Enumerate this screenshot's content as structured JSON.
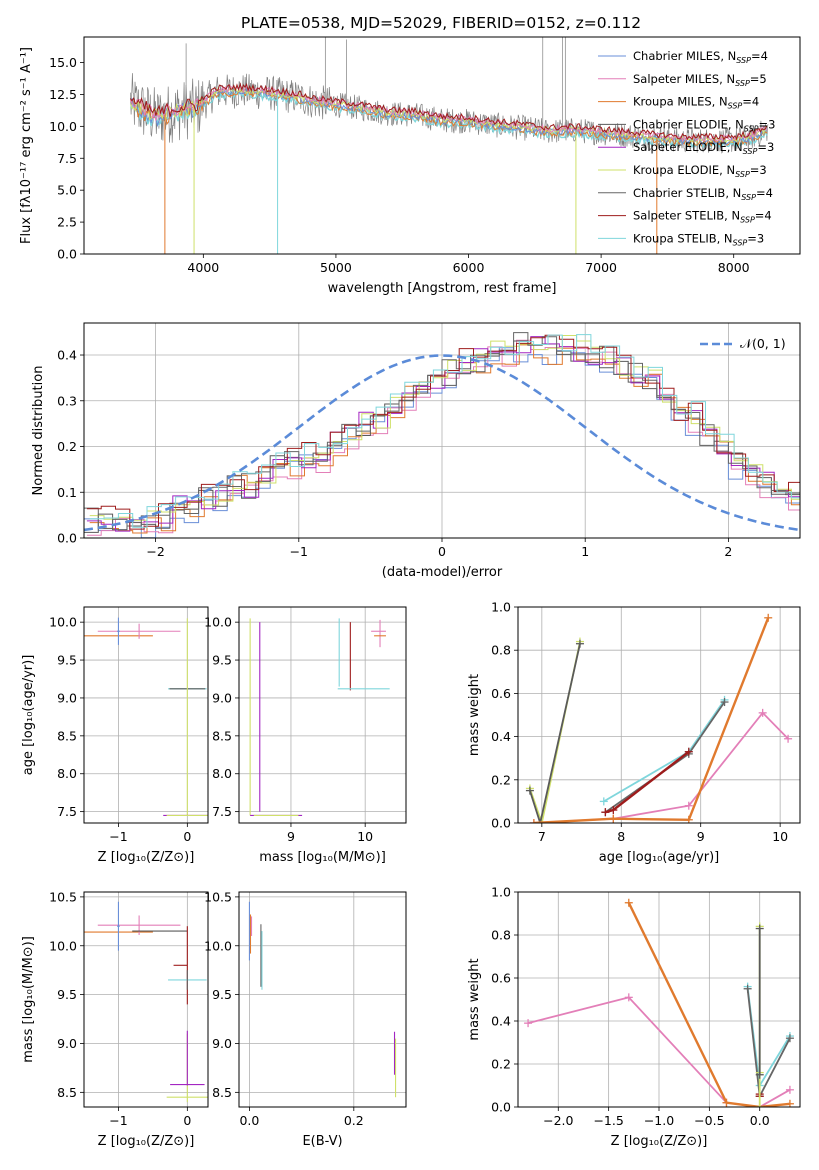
{
  "colors": {
    "chabrier_miles": "#6a8fd8",
    "salpeter_miles": "#e37fb8",
    "kroupa_miles": "#e07a2e",
    "chabrier_elodie": "#5a5a5a",
    "salpeter_elodie": "#a326c2",
    "kroupa_elodie": "#cfe06a",
    "chabrier_stelib": "#666666",
    "salpeter_stelib": "#9e1c1c",
    "kroupa_stelib": "#7fd6dc",
    "normal_curve": "#5b8bd8",
    "grid": "#b0b0b0"
  },
  "chart_data": [
    {
      "id": "spectrum",
      "type": "line",
      "title": "PLATE=0538, MJD=52029, FIBERID=0152, z=0.112",
      "xlabel": "wavelength [Angstrom, rest frame]",
      "ylabel": "Flux [fλ10⁻¹⁷ erg cm⁻² s⁻¹ A⁻¹]",
      "xlim": [
        3100,
        8500
      ],
      "ylim": [
        0,
        17
      ],
      "xticks": [
        4000,
        5000,
        6000,
        7000,
        8000
      ],
      "yticks": [
        0.0,
        2.5,
        5.0,
        7.5,
        10.0,
        12.5,
        15.0
      ],
      "ytick_labels": [
        "0.0",
        "2.5",
        "5.0",
        "7.5",
        "10.0",
        "12.5",
        "15.0"
      ],
      "grid": false,
      "legend_position": "top-right",
      "legend": [
        {
          "label": "Chabrier MILES, N",
          "sub": "SSP",
          "tail": "=4",
          "color_key": "chabrier_miles"
        },
        {
          "label": "Salpeter MILES, N",
          "sub": "SSP",
          "tail": "=5",
          "color_key": "salpeter_miles"
        },
        {
          "label": "Kroupa MILES, N",
          "sub": "SSP",
          "tail": "=4",
          "color_key": "kroupa_miles"
        },
        {
          "label": "Chabrier ELODIE, N",
          "sub": "SSP",
          "tail": "=3",
          "color_key": "chabrier_elodie"
        },
        {
          "label": "Salpeter ELODIE, N",
          "sub": "SSP",
          "tail": "=3",
          "color_key": "salpeter_elodie"
        },
        {
          "label": "Kroupa ELODIE, N",
          "sub": "SSP",
          "tail": "=3",
          "color_key": "kroupa_elodie"
        },
        {
          "label": "Chabrier STELIB, N",
          "sub": "SSP",
          "tail": "=4",
          "color_key": "chabrier_stelib"
        },
        {
          "label": "Salpeter STELIB, N",
          "sub": "SSP",
          "tail": "=4",
          "color_key": "salpeter_stelib"
        },
        {
          "label": "Kroupa STELIB, N",
          "sub": "SSP",
          "tail": "=3",
          "color_key": "kroupa_stelib"
        }
      ],
      "continuum": [
        [
          3450,
          11.9
        ],
        [
          3550,
          11.2
        ],
        [
          3650,
          10.7
        ],
        [
          3800,
          11.2
        ],
        [
          3950,
          11.4
        ],
        [
          4100,
          12.7
        ],
        [
          4300,
          12.8
        ],
        [
          4500,
          12.6
        ],
        [
          4700,
          12.3
        ],
        [
          4850,
          11.9
        ],
        [
          5000,
          11.7
        ],
        [
          5200,
          11.4
        ],
        [
          5400,
          11.0
        ],
        [
          5600,
          10.9
        ],
        [
          5800,
          10.5
        ],
        [
          6000,
          10.4
        ],
        [
          6200,
          10.1
        ],
        [
          6400,
          9.9
        ],
        [
          6600,
          9.6
        ],
        [
          6800,
          9.7
        ],
        [
          7000,
          9.5
        ],
        [
          7200,
          9.3
        ],
        [
          7400,
          9.1
        ],
        [
          7600,
          8.9
        ],
        [
          7800,
          8.9
        ],
        [
          8000,
          8.9
        ],
        [
          8150,
          9.2
        ],
        [
          8260,
          9.8
        ]
      ],
      "dips": [
        {
          "x": 3710,
          "y": 0.0
        },
        {
          "x": 3930,
          "y": 0.0
        },
        {
          "x": 4560,
          "y": 0.0
        },
        {
          "x": 6810,
          "y": 0.0
        },
        {
          "x": 7420,
          "y": 0.0
        }
      ]
    },
    {
      "id": "residuals",
      "type": "histogram",
      "xlabel": "(data-model)/error",
      "ylabel": "Normed distribution",
      "xlim": [
        -2.5,
        2.5
      ],
      "ylim": [
        0,
        0.47
      ],
      "xticks": [
        -2,
        -1,
        0,
        1,
        2
      ],
      "xtick_labels": [
        "−2",
        "−1",
        "0",
        "1",
        "2"
      ],
      "yticks": [
        0.0,
        0.1,
        0.2,
        0.3,
        0.4
      ],
      "ytick_labels": [
        "0.0",
        "0.1",
        "0.2",
        "0.3",
        "0.4"
      ],
      "grid": true,
      "legend_position": "top-right",
      "legend_label": "𝒩(0, 1)",
      "bin_width": 0.1,
      "bins_start": -2.5,
      "heights": [
        0.035,
        0.035,
        0.03,
        0.03,
        0.035,
        0.045,
        0.07,
        0.065,
        0.085,
        0.09,
        0.12,
        0.11,
        0.14,
        0.165,
        0.16,
        0.175,
        0.18,
        0.21,
        0.225,
        0.25,
        0.255,
        0.285,
        0.315,
        0.33,
        0.35,
        0.36,
        0.385,
        0.39,
        0.405,
        0.41,
        0.42,
        0.42,
        0.41,
        0.415,
        0.41,
        0.39,
        0.395,
        0.37,
        0.35,
        0.345,
        0.31,
        0.27,
        0.26,
        0.23,
        0.195,
        0.165,
        0.14,
        0.125,
        0.1,
        0.09,
        0.06
      ]
    },
    {
      "id": "age-vs-z",
      "type": "errorbar",
      "xlabel": "Z [log₁₀(Z/Z⊙)]",
      "ylabel": "age  [log₁₀(age/yr)]",
      "xlim": [
        -1.5,
        0.3
      ],
      "ylim": [
        7.35,
        10.2
      ],
      "xticks": [
        -1,
        0
      ],
      "xtick_labels": [
        "−1",
        "0"
      ],
      "yticks": [
        7.5,
        8.0,
        8.5,
        9.0,
        9.5,
        10.0
      ],
      "ytick_labels": [
        "7.5",
        "8.0",
        "8.5",
        "9.0",
        "9.5",
        "10.0"
      ],
      "grid": true,
      "points": [
        {
          "x": -1.0,
          "y": 9.82,
          "xerr": 0.5,
          "yerr": 0.0,
          "color_key": "kroupa_miles"
        },
        {
          "x": -0.7,
          "y": 9.88,
          "xerr": 0.6,
          "yerr": 0.1,
          "color_key": "salpeter_miles"
        },
        {
          "x": -1.0,
          "y": 9.88,
          "xerr": 0.02,
          "yerr": 0.18,
          "color_key": "chabrier_miles"
        },
        {
          "x": 0.0,
          "y": 9.12,
          "xerr": 0.28,
          "yerr": 0.0,
          "color_key": "kroupa_stelib"
        },
        {
          "x": 0.0,
          "y": 9.12,
          "xerr": 0.26,
          "yerr": 0.0,
          "color_key": "chabrier_elodie"
        },
        {
          "x": 0.0,
          "y": 8.75,
          "xerr": 0.0,
          "yerr": 1.3,
          "color_key": "kroupa_elodie"
        },
        {
          "x": 0.0,
          "y": 7.45,
          "xerr": 0.35,
          "yerr": 0.0,
          "color_key": "salpeter_elodie"
        },
        {
          "x": 0.0,
          "y": 7.45,
          "xerr": 0.3,
          "yerr": 0.0,
          "color_key": "kroupa_elodie"
        }
      ]
    },
    {
      "id": "age-vs-mass",
      "type": "errorbar",
      "xlabel": "mass [log₁₀(M/M⊙)]",
      "ylabel": "",
      "xlim": [
        8.3,
        10.55
      ],
      "ylim": [
        7.35,
        10.2
      ],
      "xticks": [
        9,
        10
      ],
      "xtick_labels": [
        "9",
        "10"
      ],
      "yticks": [
        7.5,
        8.0,
        8.5,
        9.0,
        9.5,
        10.0
      ],
      "ytick_labels": [
        "7.5",
        "8.0",
        "8.5",
        "9.0",
        "9.5",
        "10.0"
      ],
      "grid": true,
      "points": [
        {
          "x": 8.45,
          "y": 8.75,
          "xerr": 0.0,
          "yerr": 1.3,
          "color_key": "kroupa_elodie"
        },
        {
          "x": 8.58,
          "y": 8.75,
          "xerr": 0.0,
          "yerr": 1.25,
          "color_key": "salpeter_elodie"
        },
        {
          "x": 8.8,
          "y": 7.45,
          "xerr": 0.35,
          "yerr": 0.0,
          "color_key": "salpeter_elodie"
        },
        {
          "x": 8.8,
          "y": 7.45,
          "xerr": 0.3,
          "yerr": 0.0,
          "color_key": "kroupa_elodie"
        },
        {
          "x": 9.65,
          "y": 9.6,
          "xerr": 0.0,
          "yerr": 0.45,
          "color_key": "kroupa_stelib"
        },
        {
          "x": 9.8,
          "y": 9.55,
          "xerr": 0.0,
          "yerr": 0.45,
          "color_key": "salpeter_stelib"
        },
        {
          "x": 9.98,
          "y": 9.12,
          "xerr": 0.35,
          "yerr": 0.0,
          "color_key": "kroupa_stelib"
        },
        {
          "x": 10.2,
          "y": 9.85,
          "xerr": 0.0,
          "yerr": 0.18,
          "color_key": "salpeter_miles"
        },
        {
          "x": 10.18,
          "y": 9.88,
          "xerr": 0.1,
          "yerr": 0.0,
          "color_key": "salpeter_miles"
        },
        {
          "x": 10.2,
          "y": 9.82,
          "xerr": 0.08,
          "yerr": 0.0,
          "color_key": "kroupa_miles"
        }
      ]
    },
    {
      "id": "weight-vs-age",
      "type": "line",
      "xlabel": "age  [log₁₀(age/yr)]",
      "ylabel": "mass weight",
      "xlim": [
        6.7,
        10.25
      ],
      "ylim": [
        0,
        1.0
      ],
      "xticks": [
        7,
        8,
        9,
        10
      ],
      "xtick_labels": [
        "7",
        "8",
        "9",
        "10"
      ],
      "yticks": [
        0.0,
        0.2,
        0.4,
        0.6,
        0.8,
        1.0
      ],
      "ytick_labels": [
        "0.0",
        "0.2",
        "0.4",
        "0.6",
        "0.8",
        "1.0"
      ],
      "grid": true,
      "series": [
        {
          "color_key": "kroupa_elodie",
          "x": [
            6.85,
            7.0,
            7.48
          ],
          "y": [
            0.16,
            0.0,
            0.84
          ]
        },
        {
          "color_key": "chabrier_elodie",
          "x": [
            6.85,
            6.98,
            7.48
          ],
          "y": [
            0.15,
            0.0,
            0.83
          ]
        },
        {
          "color_key": "kroupa_stelib",
          "x": [
            7.78,
            8.85,
            9.3
          ],
          "y": [
            0.1,
            0.33,
            0.57
          ]
        },
        {
          "color_key": "chabrier_stelib",
          "x": [
            7.8,
            8.85,
            9.3
          ],
          "y": [
            0.05,
            0.32,
            0.56
          ]
        },
        {
          "color_key": "salpeter_stelib",
          "x": [
            7.8,
            7.9,
            8.85
          ],
          "y": [
            0.05,
            0.06,
            0.33
          ]
        },
        {
          "color_key": "salpeter_miles",
          "x": [
            6.9,
            7.9,
            8.85,
            9.78,
            10.1
          ],
          "y": [
            0.0,
            0.02,
            0.08,
            0.51,
            0.39
          ]
        },
        {
          "color_key": "kroupa_miles",
          "x": [
            6.9,
            7.9,
            8.85,
            9.85
          ],
          "y": [
            0.0,
            0.02,
            0.015,
            0.95
          ]
        }
      ]
    },
    {
      "id": "mass-vs-z",
      "type": "errorbar",
      "xlabel": "Z [log₁₀(Z/Z⊙)]",
      "ylabel": "mass [log₁₀(M/M⊙)]",
      "xlim": [
        -1.5,
        0.3
      ],
      "ylim": [
        8.35,
        10.55
      ],
      "xticks": [
        -1,
        0
      ],
      "xtick_labels": [
        "−1",
        "0"
      ],
      "yticks": [
        8.5,
        9.0,
        9.5,
        10.0,
        10.5
      ],
      "ytick_labels": [
        "8.5",
        "9.0",
        "9.5",
        "10.0",
        "10.5"
      ],
      "grid": true,
      "points": [
        {
          "x": -1.0,
          "y": 10.14,
          "xerr": 0.5,
          "yerr": 0.0,
          "color_key": "kroupa_miles"
        },
        {
          "x": -0.7,
          "y": 10.21,
          "xerr": 0.6,
          "yerr": 0.1,
          "color_key": "salpeter_miles"
        },
        {
          "x": -1.0,
          "y": 10.2,
          "xerr": 0.02,
          "yerr": 0.25,
          "color_key": "chabrier_miles"
        },
        {
          "x": -0.4,
          "y": 10.15,
          "xerr": 0.4,
          "yerr": 0.0,
          "color_key": "chabrier_elodie"
        },
        {
          "x": 0.0,
          "y": 9.8,
          "xerr": 0.0,
          "yerr": 0.4,
          "color_key": "salpeter_stelib"
        },
        {
          "x": -0.1,
          "y": 9.8,
          "xerr": 0.1,
          "yerr": 0.0,
          "color_key": "salpeter_stelib"
        },
        {
          "x": 0.0,
          "y": 9.65,
          "xerr": 0.28,
          "yerr": 0.0,
          "color_key": "kroupa_stelib"
        },
        {
          "x": 0.0,
          "y": 9.65,
          "xerr": 0.0,
          "yerr": 0.1,
          "color_key": "chabrier_stelib"
        },
        {
          "x": 0.0,
          "y": 8.75,
          "xerr": 0.0,
          "yerr": 0.35,
          "color_key": "kroupa_elodie"
        },
        {
          "x": 0.0,
          "y": 8.85,
          "xerr": 0.0,
          "yerr": 0.28,
          "color_key": "salpeter_elodie"
        },
        {
          "x": 0.0,
          "y": 8.58,
          "xerr": 0.25,
          "yerr": 0.0,
          "color_key": "salpeter_elodie"
        },
        {
          "x": 0.0,
          "y": 8.45,
          "xerr": 0.3,
          "yerr": 0.0,
          "color_key": "kroupa_elodie"
        }
      ]
    },
    {
      "id": "mass-vs-ebv",
      "type": "errorbar",
      "xlabel": "E(B-V)",
      "ylabel": "",
      "xlim": [
        -0.02,
        0.3
      ],
      "ylim": [
        8.35,
        10.55
      ],
      "xticks": [
        0.0,
        0.2
      ],
      "xtick_labels": [
        "0.0",
        "0.2"
      ],
      "yticks": [
        8.5,
        9.0,
        9.5,
        10.0,
        10.5
      ],
      "ytick_labels": [
        "8.5",
        "9.0",
        "9.5",
        "10.0",
        "10.5"
      ],
      "grid": true,
      "points": [
        {
          "x": 0.0,
          "y": 10.15,
          "xerr": 0.0,
          "yerr": 0.3,
          "color_key": "chabrier_miles"
        },
        {
          "x": 0.002,
          "y": 10.12,
          "xerr": 0.0,
          "yerr": 0.2,
          "color_key": "kroupa_miles"
        },
        {
          "x": 0.004,
          "y": 10.2,
          "xerr": 0.0,
          "yerr": 0.1,
          "color_key": "salpeter_miles"
        },
        {
          "x": 0.022,
          "y": 9.9,
          "xerr": 0.0,
          "yerr": 0.32,
          "color_key": "chabrier_stelib"
        },
        {
          "x": 0.024,
          "y": 9.85,
          "xerr": 0.0,
          "yerr": 0.3,
          "color_key": "kroupa_stelib"
        },
        {
          "x": 0.278,
          "y": 8.9,
          "xerr": 0.0,
          "yerr": 0.22,
          "color_key": "salpeter_elodie"
        },
        {
          "x": 0.28,
          "y": 8.75,
          "xerr": 0.0,
          "yerr": 0.3,
          "color_key": "kroupa_elodie"
        }
      ]
    },
    {
      "id": "weight-vs-z",
      "type": "line",
      "xlabel": "Z [log₁₀(Z/Z⊙)]",
      "ylabel": "mass weight",
      "xlim": [
        -2.4,
        0.4
      ],
      "ylim": [
        0,
        1.0
      ],
      "xticks": [
        -2.0,
        -1.5,
        -1.0,
        -0.5,
        0.0
      ],
      "xtick_labels": [
        "−2.0",
        "−1.5",
        "−1.0",
        "−0.5",
        "0.0"
      ],
      "yticks": [
        0.0,
        0.2,
        0.4,
        0.6,
        0.8,
        1.0
      ],
      "ytick_labels": [
        "0.0",
        "0.2",
        "0.4",
        "0.6",
        "0.8",
        "1.0"
      ],
      "grid": true,
      "series": [
        {
          "color_key": "salpeter_miles",
          "x": [
            -2.3,
            -1.3,
            -0.33,
            0.0,
            0.3
          ],
          "y": [
            0.39,
            0.51,
            0.02,
            0.0,
            0.08
          ]
        },
        {
          "color_key": "kroupa_miles",
          "x": [
            -1.3,
            -0.33,
            0.0,
            0.3
          ],
          "y": [
            0.95,
            0.02,
            0.0,
            0.015
          ]
        },
        {
          "color_key": "kroupa_stelib",
          "x": [
            -0.12,
            0.0,
            0.3
          ],
          "y": [
            0.56,
            0.1,
            0.33
          ]
        },
        {
          "color_key": "chabrier_stelib",
          "x": [
            -0.12,
            0.0,
            0.3
          ],
          "y": [
            0.55,
            0.05,
            0.32
          ]
        },
        {
          "color_key": "salpeter_stelib",
          "x": [
            0.0,
            0.0
          ],
          "y": [
            0.05,
            0.06
          ]
        },
        {
          "color_key": "kroupa_elodie",
          "x": [
            0.0,
            0.0,
            0.0
          ],
          "y": [
            0.84,
            0.16,
            0.0
          ]
        },
        {
          "color_key": "chabrier_elodie",
          "x": [
            0.0,
            0.0
          ],
          "y": [
            0.83,
            0.15
          ]
        }
      ]
    }
  ]
}
